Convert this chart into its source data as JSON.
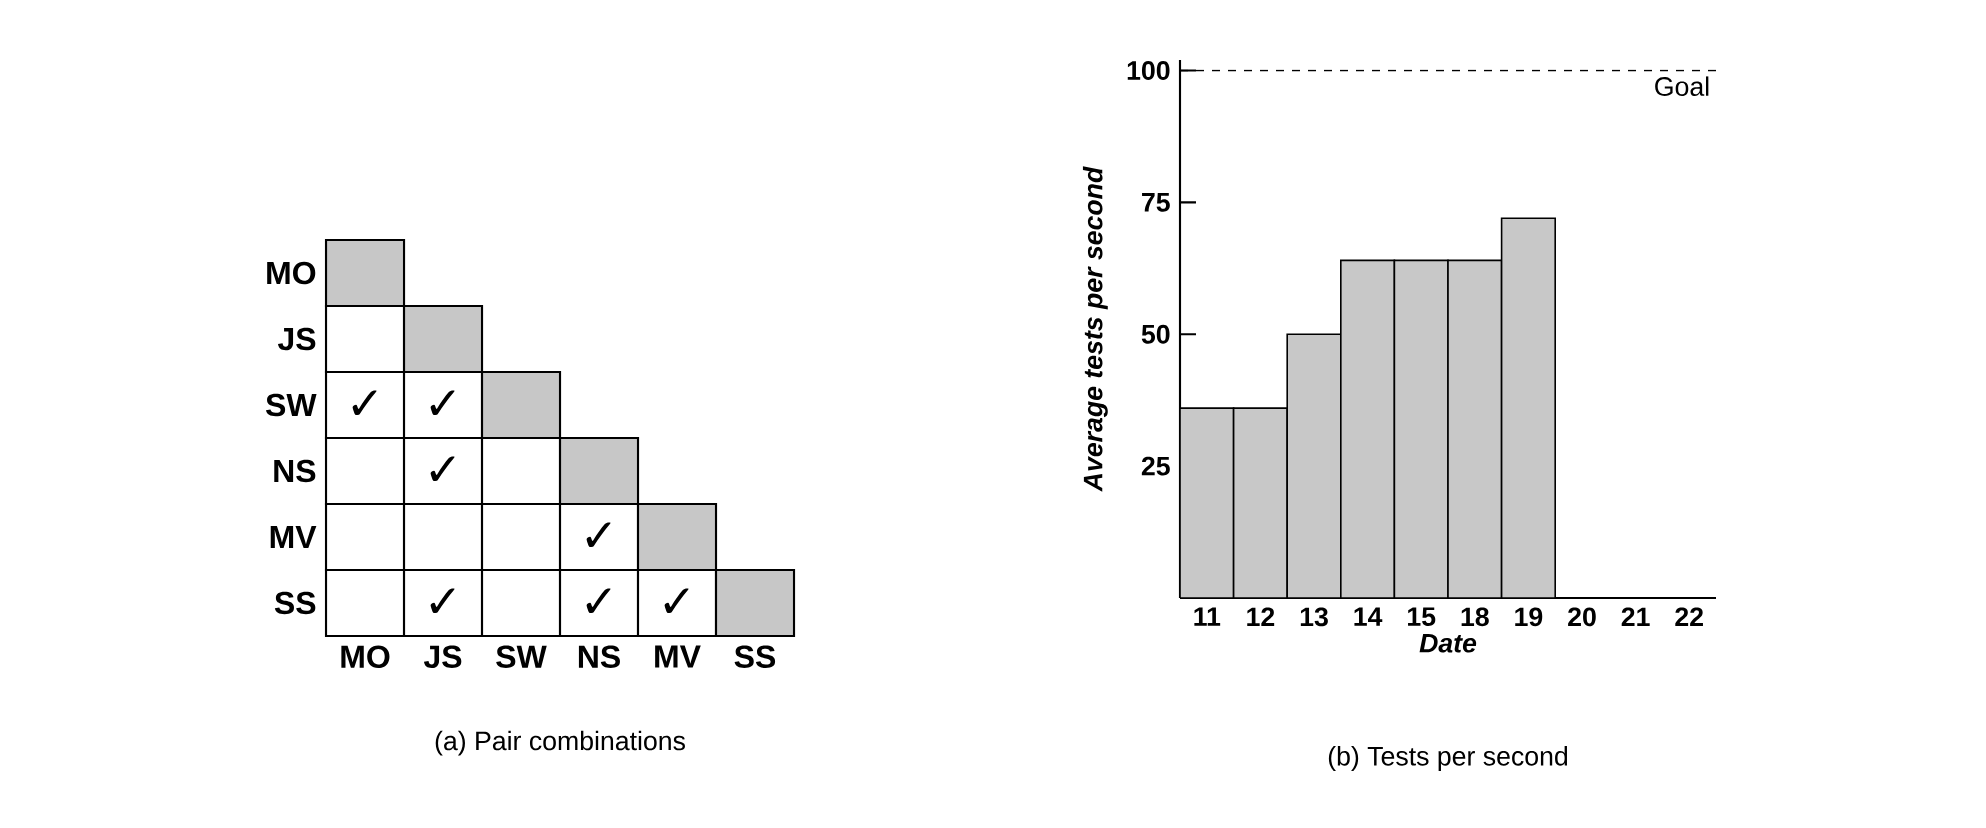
{
  "chart_data": [
    {
      "type": "other",
      "title": "(a) Pair combinations",
      "categories": [
        "MO",
        "JS",
        "SW",
        "NS",
        "MV",
        "SS"
      ],
      "y_categories": [
        "MO",
        "JS",
        "SW",
        "NS",
        "MV",
        "SS"
      ],
      "cell_labels": [
        [
          null,
          null,
          null,
          null,
          null,
          null
        ],
        [
          null,
          null,
          null,
          null,
          null,
          null
        ],
        [
          "✓",
          "✓",
          null,
          null,
          null,
          null
        ],
        [
          null,
          "✓",
          null,
          null,
          null,
          null
        ],
        [
          null,
          null,
          null,
          "✓",
          null,
          null
        ],
        [
          null,
          "✓",
          null,
          "✓",
          "✓",
          null
        ]
      ]
    },
    {
      "type": "bar",
      "title": "(b) Tests per second",
      "xlabel": "Date",
      "ylabel": "Average tests per second",
      "categories": [
        "11",
        "12",
        "13",
        "14",
        "15",
        "18",
        "19",
        "20",
        "21",
        "22"
      ],
      "values": [
        36,
        36,
        50,
        64,
        64,
        64,
        72,
        null,
        null,
        null
      ],
      "color": "#c8c8c8",
      "ylim": [
        0,
        102
      ],
      "yticks": [
        25,
        50,
        75,
        100
      ],
      "grid": false,
      "ref_lines": [
        {
          "axis": "y",
          "value": 100,
          "label": "Goal",
          "line_style": "dashed"
        }
      ]
    }
  ]
}
